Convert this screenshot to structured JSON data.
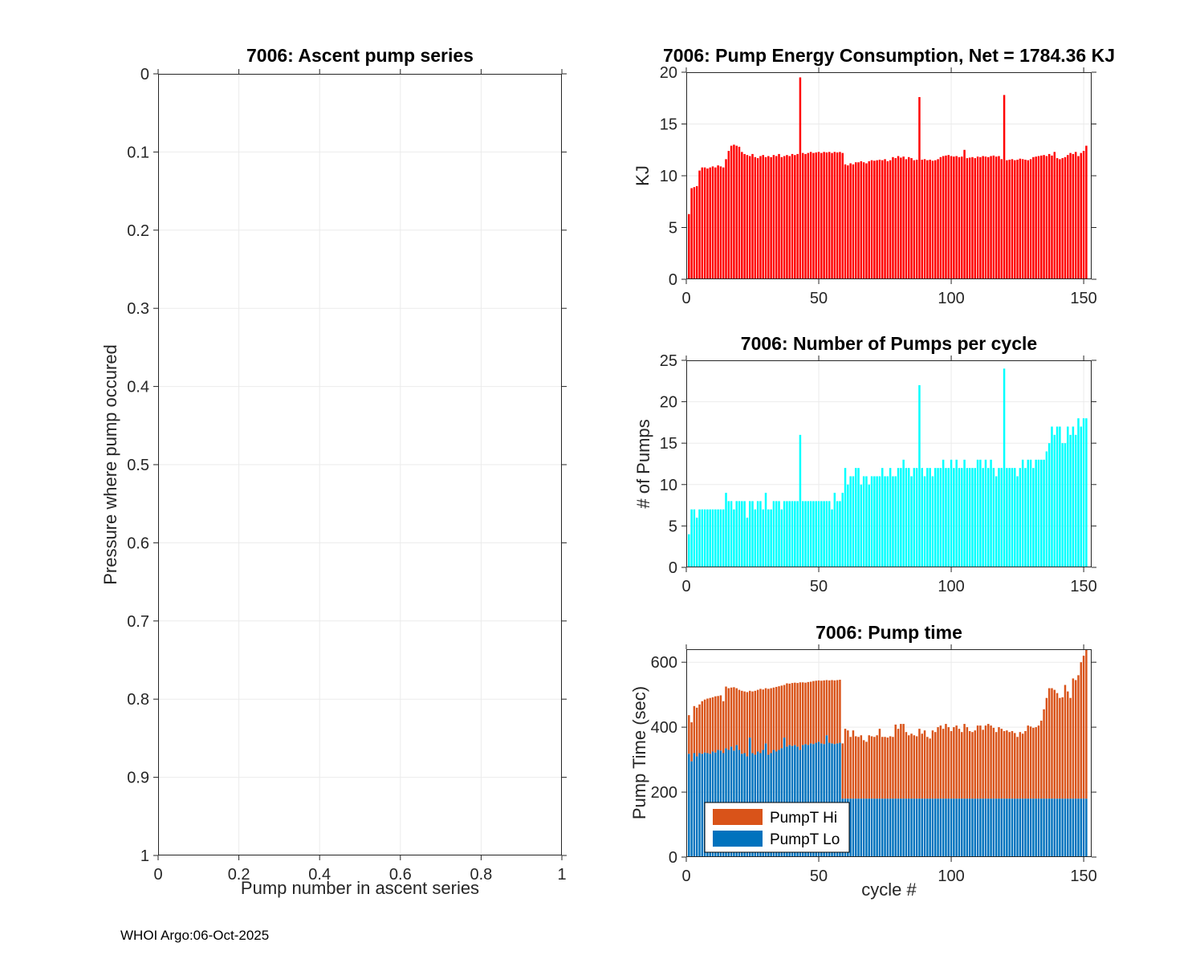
{
  "figure": {
    "footer": "WHOI Argo:06-Oct-2025",
    "background": "#ffffff",
    "axis_color": "#262626",
    "grid_color": "#ebebeb"
  },
  "chart_data": [
    {
      "id": "ascent",
      "type": "bar",
      "title": "7006: Ascent pump series",
      "xlabel": "Pump number in ascent series",
      "ylabel": "Pressure where pump occured",
      "xlim": [
        0,
        1
      ],
      "ylim": [
        0,
        1
      ],
      "y_inverted": true,
      "grid": true,
      "xticks": {
        "values": [
          0,
          0.2,
          0.4,
          0.6,
          0.8,
          1
        ],
        "labels": [
          "0",
          "0.2",
          "0.4",
          "0.6",
          "0.8",
          "1"
        ]
      },
      "yticks": {
        "values": [
          0,
          0.1,
          0.2,
          0.3,
          0.4,
          0.5,
          0.6,
          0.7,
          0.8,
          0.9,
          1
        ],
        "labels": [
          "0",
          "0.1",
          "0.2",
          "0.3",
          "0.4",
          "0.5",
          "0.6",
          "0.7",
          "0.8",
          "0.9",
          "1"
        ]
      },
      "x": [],
      "values": []
    },
    {
      "id": "energy",
      "type": "bar",
      "title": "7006: Pump Energy Consumption,  Net = 1784.36 KJ",
      "net_energy_kj": 1784.36,
      "xlabel": "",
      "ylabel": "KJ",
      "xlim": [
        0,
        153
      ],
      "ylim": [
        0,
        20
      ],
      "grid": true,
      "bar_color": "#ff0000",
      "bar_width_units": 0.75,
      "x_start": 1,
      "xticks": {
        "values": [
          0,
          50,
          100,
          150
        ],
        "labels": [
          "0",
          "50",
          "100",
          "150"
        ]
      },
      "yticks": {
        "values": [
          0,
          5,
          10,
          15,
          20
        ],
        "labels": [
          "0",
          "5",
          "10",
          "15",
          "20"
        ]
      },
      "values": [
        6.3,
        8.8,
        8.9,
        9.0,
        10.5,
        10.8,
        10.8,
        10.7,
        10.8,
        10.9,
        10.8,
        11.0,
        10.9,
        10.8,
        11.6,
        12.4,
        12.9,
        13.0,
        12.9,
        12.8,
        12.3,
        12.1,
        12.0,
        11.9,
        12.1,
        11.8,
        11.7,
        11.9,
        12.0,
        11.8,
        11.9,
        11.8,
        12.0,
        11.9,
        12.1,
        11.8,
        11.9,
        12.0,
        11.9,
        12.1,
        12.0,
        12.1,
        19.5,
        12.2,
        12.1,
        12.2,
        12.3,
        12.2,
        12.25,
        12.3,
        12.2,
        12.3,
        12.25,
        12.3,
        12.2,
        12.3,
        12.25,
        12.3,
        12.2,
        11.1,
        11.0,
        11.2,
        11.1,
        11.3,
        11.3,
        11.4,
        11.3,
        11.2,
        11.4,
        11.5,
        11.45,
        11.5,
        11.55,
        11.5,
        11.6,
        11.4,
        11.5,
        11.8,
        11.7,
        11.9,
        11.75,
        11.85,
        11.6,
        11.8,
        11.7,
        11.5,
        11.55,
        17.6,
        11.55,
        11.6,
        11.5,
        11.55,
        11.45,
        11.5,
        11.6,
        11.8,
        11.9,
        11.95,
        12.0,
        11.9,
        11.85,
        11.9,
        11.8,
        11.85,
        12.5,
        11.7,
        11.75,
        11.8,
        11.7,
        11.85,
        11.8,
        11.9,
        11.85,
        11.8,
        11.9,
        11.95,
        11.85,
        11.9,
        11.6,
        17.8,
        11.5,
        11.55,
        11.6,
        11.5,
        11.55,
        11.65,
        11.6,
        11.55,
        11.5,
        11.6,
        11.8,
        11.85,
        11.9,
        11.95,
        12.0,
        11.9,
        12.1,
        11.95,
        12.3,
        11.7,
        11.6,
        11.7,
        11.8,
        12.0,
        12.2,
        12.1,
        12.3,
        11.9,
        12.2,
        12.4,
        12.9
      ]
    },
    {
      "id": "pumps",
      "type": "bar",
      "title": "7006: Number of Pumps per cycle",
      "xlabel": "",
      "ylabel": "# of Pumps",
      "xlim": [
        0,
        153
      ],
      "ylim": [
        0,
        25
      ],
      "grid": true,
      "bar_color": "#00ffff",
      "bar_width_units": 0.75,
      "x_start": 1,
      "xticks": {
        "values": [
          0,
          50,
          100,
          150
        ],
        "labels": [
          "0",
          "50",
          "100",
          "150"
        ]
      },
      "yticks": {
        "values": [
          0,
          5,
          10,
          15,
          20,
          25
        ],
        "labels": [
          "0",
          "5",
          "10",
          "15",
          "20",
          "25"
        ]
      },
      "values": [
        4,
        7,
        7,
        6,
        7,
        7,
        7,
        7,
        7,
        7,
        7,
        7,
        7,
        7,
        9,
        8,
        8,
        7,
        8,
        8,
        8,
        8,
        6,
        8,
        8,
        7,
        8,
        8,
        7,
        9,
        7,
        7,
        8,
        8,
        8,
        7,
        8,
        8,
        8,
        8,
        8,
        8,
        16,
        8,
        8,
        8,
        8,
        8,
        8,
        8,
        8,
        8,
        8,
        8,
        7,
        9,
        8,
        8,
        9,
        12,
        10,
        11,
        11,
        12,
        12,
        10,
        11,
        11,
        10,
        11,
        11,
        11,
        11,
        12,
        11,
        11,
        12,
        11,
        11,
        12,
        12,
        13,
        12,
        12,
        11,
        12,
        12,
        22,
        12,
        11,
        12,
        12,
        11,
        12,
        12,
        12,
        13,
        12,
        12,
        13,
        12,
        13,
        12,
        12,
        13,
        12,
        12,
        12,
        12,
        13,
        13,
        12,
        13,
        12,
        13,
        12,
        11,
        12,
        12,
        24,
        12,
        12,
        12,
        12,
        11,
        12,
        13,
        12,
        13,
        13,
        12,
        13,
        13,
        13,
        13,
        14,
        15,
        17,
        16,
        17,
        17,
        15,
        15,
        17,
        16,
        17,
        16,
        18,
        17,
        18,
        18
      ]
    },
    {
      "id": "time",
      "type": "stacked-bar",
      "title": "7006: Pump time",
      "xlabel": "cycle #",
      "ylabel": "Pump Time (sec)",
      "xlim": [
        0,
        153
      ],
      "ylim": [
        0,
        640
      ],
      "grid": true,
      "bar_width_units": 0.75,
      "x_start": 1,
      "xticks": {
        "values": [
          0,
          50,
          100,
          150
        ],
        "labels": [
          "0",
          "50",
          "100",
          "150"
        ]
      },
      "yticks": {
        "values": [
          0,
          200,
          400,
          600
        ],
        "labels": [
          "0",
          "200",
          "400",
          "600"
        ]
      },
      "legend": {
        "position": "southwest",
        "entries": [
          {
            "label": "PumpT Hi",
            "color": "#d95319"
          },
          {
            "label": "PumpT Lo",
            "color": "#0072bd"
          }
        ]
      },
      "series": [
        {
          "name": "PumpT Lo",
          "color": "#0072bd",
          "values": [
            318,
            295,
            320,
            310,
            320,
            318,
            322,
            320,
            318,
            325,
            322,
            330,
            328,
            320,
            335,
            330,
            340,
            328,
            345,
            330,
            318,
            320,
            310,
            368,
            320,
            315,
            325,
            320,
            330,
            350,
            315,
            320,
            330,
            325,
            330,
            335,
            368,
            340,
            345,
            342,
            345,
            340,
            330,
            345,
            348,
            345,
            350,
            348,
            352,
            355,
            350,
            348,
            375,
            352,
            350,
            348,
            350,
            352,
            180,
            180,
            180,
            180,
            180,
            180,
            180,
            180,
            180,
            180,
            180,
            180,
            180,
            180,
            180,
            180,
            180,
            180,
            180,
            180,
            180,
            180,
            180,
            180,
            180,
            180,
            180,
            180,
            180,
            180,
            180,
            180,
            180,
            180,
            180,
            180,
            180,
            180,
            180,
            180,
            180,
            180,
            180,
            180,
            180,
            180,
            180,
            180,
            180,
            180,
            180,
            180,
            180,
            180,
            180,
            180,
            180,
            180,
            180,
            180,
            180,
            180,
            180,
            180,
            180,
            180,
            180,
            180,
            180,
            180,
            180,
            180,
            180,
            180,
            180,
            180,
            180,
            180,
            180,
            180,
            180,
            180,
            180,
            180,
            180,
            180,
            180,
            180,
            180,
            180,
            180,
            180,
            180
          ]
        },
        {
          "name": "PumpT Hi",
          "color": "#d95319",
          "values": [
            119,
            120,
            145,
            150,
            150,
            162,
            163,
            168,
            172,
            167,
            173,
            166,
            170,
            160,
            190,
            190,
            182,
            195,
            175,
            185,
            194,
            190,
            198,
            144,
            190,
            197,
            190,
            198,
            186,
            170,
            203,
            200,
            192,
            199,
            196,
            193,
            162,
            195,
            189,
            194,
            192,
            196,
            208,
            193,
            189,
            194,
            190,
            194,
            191,
            189,
            193,
            196,
            170,
            192,
            195,
            196,
            195,
            194,
            170,
            215,
            210,
            190,
            210,
            192,
            190,
            195,
            180,
            175,
            195,
            192,
            190,
            195,
            215,
            190,
            190,
            188,
            192,
            190,
            228,
            215,
            230,
            230,
            205,
            195,
            200,
            195,
            192,
            215,
            200,
            210,
            190,
            185,
            210,
            205,
            220,
            225,
            215,
            230,
            220,
            208,
            220,
            225,
            215,
            205,
            230,
            220,
            208,
            205,
            210,
            225,
            225,
            212,
            225,
            230,
            225,
            218,
            205,
            220,
            215,
            208,
            210,
            205,
            208,
            202,
            190,
            205,
            200,
            208,
            225,
            222,
            218,
            220,
            225,
            240,
            275,
            310,
            340,
            340,
            335,
            325,
            310,
            312,
            350,
            330,
            310,
            370,
            365,
            380,
            420,
            440,
            460
          ]
        }
      ]
    }
  ]
}
